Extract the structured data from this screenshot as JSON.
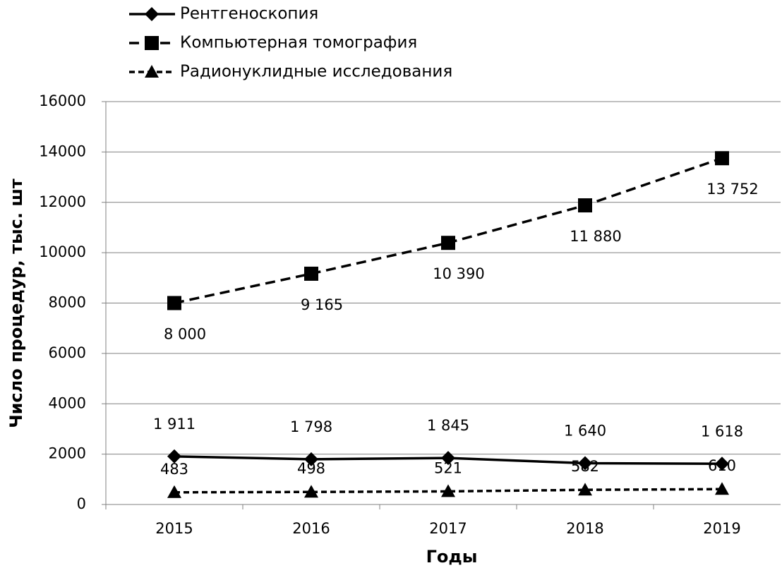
{
  "chart_data": {
    "type": "line",
    "x_label": "Годы",
    "y_label": "Число процедур, тыс. шт",
    "categories": [
      "2015",
      "2016",
      "2017",
      "2018",
      "2019"
    ],
    "series": [
      {
        "name": "Рентгеноскопия",
        "color": "#000000",
        "line_style": "solid",
        "marker": "diamond",
        "values": [
          1911,
          1798,
          1845,
          1640,
          1618
        ],
        "value_labels": [
          "1 911",
          "1 798",
          "1 845",
          "1 640",
          "1 618"
        ]
      },
      {
        "name": "Компьютерная томография",
        "color": "#000000",
        "line_style": "dashed",
        "marker": "square",
        "values": [
          8000,
          9165,
          10390,
          11880,
          13752
        ],
        "value_labels": [
          "8 000",
          "9 165",
          "10 390",
          "11 880",
          "13 752"
        ]
      },
      {
        "name": "Радионуклидные исследования",
        "color": "#000000",
        "line_style": "dotted",
        "marker": "triangle",
        "values": [
          483,
          498,
          521,
          582,
          610
        ],
        "value_labels": [
          "483",
          "498",
          "521",
          "582",
          "610"
        ]
      }
    ],
    "ylim": [
      0,
      16000
    ],
    "yticks": [
      0,
      2000,
      4000,
      6000,
      8000,
      10000,
      12000,
      14000,
      16000
    ],
    "grid": true,
    "legend": "top"
  }
}
